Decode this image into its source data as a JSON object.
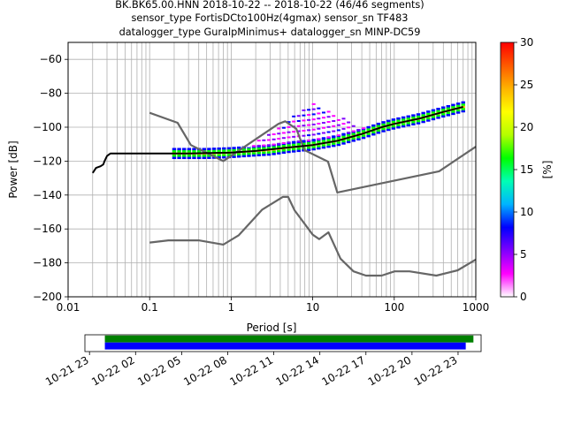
{
  "chart_data": {
    "type": "heatmap",
    "title_lines": [
      "BK.BK65.00.HNN   2018-10-22 -- 2018-10-22  (46/46 segments)",
      "sensor_type FortisDCto100Hz(4gmax) sensor_sn TF483",
      "datalogger_type GuralpMinimus+ datalogger_sn MINP-DC59"
    ],
    "xlabel": "Period [s]",
    "ylabel": "Power [dB]",
    "x_scale": "log",
    "xlim": [
      0.01,
      1000
    ],
    "ylim": [
      -200,
      -50
    ],
    "x_ticks": [
      0.01,
      0.1,
      1,
      10,
      100,
      1000
    ],
    "x_tick_labels": [
      "0.01",
      "0.1",
      "1",
      "10",
      "100",
      "1000"
    ],
    "y_ticks": [
      -200,
      -180,
      -160,
      -140,
      -120,
      -100,
      -80,
      -60
    ],
    "y_tick_labels": [
      "−200",
      "−180",
      "−160",
      "−140",
      "−120",
      "−100",
      "−80",
      "−60"
    ],
    "grid": true,
    "colorbar": {
      "label": "[%]",
      "range": [
        0,
        30
      ],
      "ticks": [
        0,
        5,
        10,
        15,
        20,
        25,
        30
      ],
      "tick_labels": [
        "0",
        "5",
        "10",
        "15",
        "20",
        "25",
        "30"
      ],
      "colors": [
        "#ffffff",
        "#ff00ff",
        "#7f00ff",
        "#0000ff",
        "#00b4ff",
        "#00ffb4",
        "#00ff00",
        "#b4ff00",
        "#ffff00",
        "#ffb400",
        "#ff5a00",
        "#ff0000"
      ]
    },
    "series": [
      {
        "role": "high noise model",
        "color": "#666666",
        "x": [
          0.1,
          0.22,
          0.32,
          0.8,
          3.8,
          4.6,
          6.3,
          7.9,
          15.4,
          20,
          354.8,
          1000
        ],
        "y": [
          -91.5,
          -97.4,
          -110.5,
          -120,
          -98,
          -96.5,
          -101,
          -113.5,
          -120.3,
          -138.5,
          -126,
          -111.5
        ]
      },
      {
        "role": "low noise model",
        "color": "#666666",
        "x": [
          0.1,
          0.17,
          0.4,
          0.8,
          1.24,
          2.4,
          4.3,
          5.0,
          6.0,
          10.0,
          12.0,
          15.6,
          21.9,
          31.6,
          45,
          70,
          101,
          154,
          328,
          600,
          1000
        ],
        "y": [
          -168,
          -166.7,
          -166.7,
          -169.2,
          -163.7,
          -148.6,
          -141.1,
          -141.1,
          -149,
          -163.4,
          -166,
          -162,
          -177.5,
          -185,
          -187.5,
          -187.5,
          -185,
          -185,
          -187.5,
          -184.4,
          -178
        ]
      },
      {
        "role": "mode",
        "color": "#000000",
        "x": [
          0.02,
          0.022,
          0.025,
          0.027,
          0.028,
          0.03,
          0.033,
          0.04,
          0.1,
          0.3,
          1,
          2,
          5,
          10,
          20,
          40,
          70,
          100,
          200,
          400,
          700
        ],
        "y": [
          -127,
          -124,
          -123,
          -122,
          -120,
          -117,
          -115.5,
          -115.5,
          -115.5,
          -115.5,
          -115,
          -114,
          -112,
          -110.5,
          -108,
          -104,
          -100,
          -98,
          -95,
          -91,
          -88
        ]
      }
    ],
    "density": {
      "band_x": [
        0.2,
        0.5,
        1,
        2,
        3,
        5,
        10,
        20,
        40,
        70,
        100,
        200,
        400,
        700
      ],
      "band_y": [
        -115.5,
        -115.5,
        -115,
        -114,
        -113.5,
        -112,
        -110.5,
        -108,
        -104,
        -100,
        -98,
        -95,
        -91,
        -88
      ],
      "bump_x": [
        1,
        2,
        3,
        5,
        6.5,
        8,
        10,
        13,
        17,
        25,
        40,
        60,
        100
      ],
      "bump_top_y": [
        -115,
        -109,
        -103,
        -97,
        -91,
        -88,
        -86,
        -88,
        -92,
        -95,
        -100,
        -102,
        -101
      ]
    },
    "timeline": {
      "tick_labels": [
        "10-21 23",
        "10-22 02",
        "10-22 05",
        "10-22 08",
        "10-22 11",
        "10-22 14",
        "10-22 17",
        "10-22 20",
        "10-22 23"
      ],
      "tick_hours": [
        -1,
        2,
        5,
        8,
        11,
        14,
        17,
        20,
        23
      ],
      "range_hours": [
        -1.3,
        24.5
      ],
      "bars": [
        {
          "name": "data",
          "color": "#008000",
          "start": 0,
          "end": 24
        },
        {
          "name": "psd",
          "color": "#0000ff",
          "start": 0,
          "end": 23.5
        }
      ]
    }
  }
}
